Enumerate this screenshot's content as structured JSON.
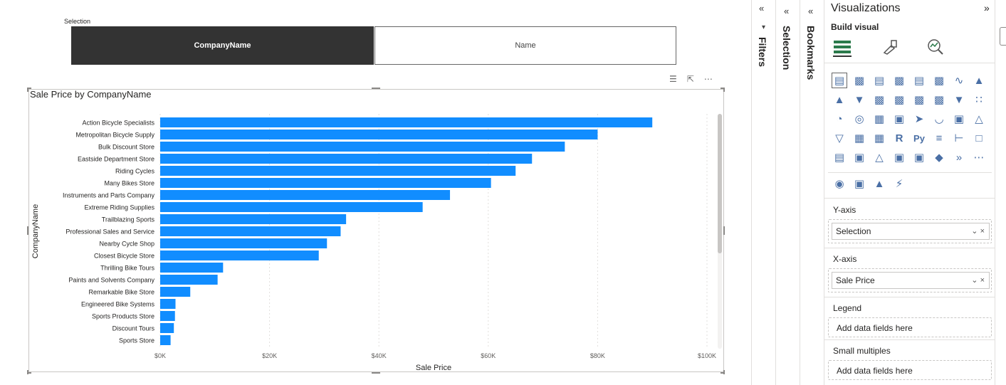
{
  "slicer": {
    "title": "Selection",
    "options": [
      "CompanyName",
      "Name"
    ],
    "selected": "CompanyName"
  },
  "visual_header_icons": [
    "filter-icon",
    "focus-mode-icon",
    "more-options-icon"
  ],
  "chart_data": {
    "type": "bar",
    "orientation": "horizontal",
    "title": "Sale Price by CompanyName",
    "xlabel": "Sale Price",
    "ylabel": "CompanyName",
    "xlim": [
      0,
      100000
    ],
    "x_ticks": [
      "$0K",
      "$20K",
      "$40K",
      "$60K",
      "$80K",
      "$100K"
    ],
    "x_tick_values": [
      0,
      20000,
      40000,
      60000,
      80000,
      100000
    ],
    "grid": true,
    "color": "#118DFF",
    "categories": [
      "Action Bicycle Specialists",
      "Metropolitan Bicycle Supply",
      "Bulk Discount Store",
      "Eastside Department Store",
      "Riding Cycles",
      "Many Bikes Store",
      "Instruments and Parts Company",
      "Extreme Riding Supplies",
      "Trailblazing Sports",
      "Professional Sales and Service",
      "Nearby Cycle Shop",
      "Closest Bicycle Store",
      "Thrilling Bike Tours",
      "Paints and Solvents Company",
      "Remarkable Bike Store",
      "Engineered Bike Systems",
      "Sports Products Store",
      "Discount Tours",
      "Sports Store"
    ],
    "values": [
      90000,
      80000,
      74000,
      68000,
      65000,
      60500,
      53000,
      48000,
      34000,
      33000,
      30500,
      29000,
      11500,
      10500,
      5500,
      2800,
      2700,
      2500,
      1900
    ]
  },
  "panes": {
    "filters": "Filters",
    "selection": "Selection",
    "bookmarks": "Bookmarks",
    "visualizations": {
      "title": "Visualizations",
      "build_visual": "Build visual",
      "wells": {
        "y_axis": {
          "label": "Y-axis",
          "field": "Selection"
        },
        "x_axis": {
          "label": "X-axis",
          "field": "Sale Price"
        },
        "legend": {
          "label": "Legend",
          "placeholder": "Add data fields here"
        },
        "small_multiples": {
          "label": "Small multiples",
          "placeholder": "Add data fields here"
        }
      }
    }
  },
  "colors": {
    "accent": "#118DFF",
    "selected_button": "#333333"
  }
}
